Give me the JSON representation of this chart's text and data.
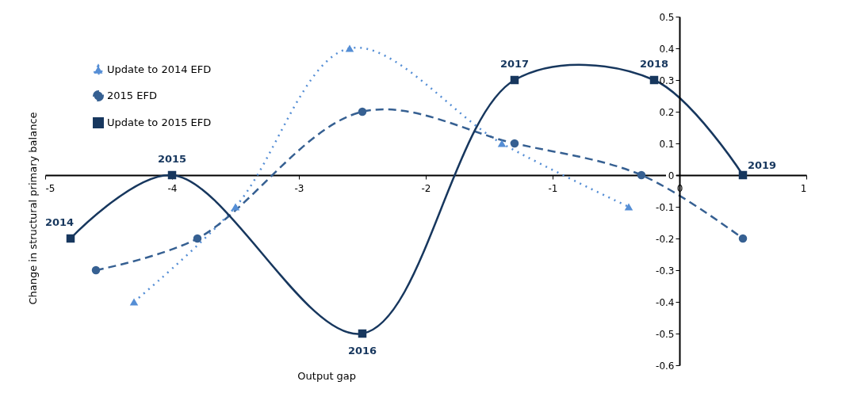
{
  "chart_data": {
    "type": "line",
    "xlabel": "Output gap",
    "ylabel": "Change in structural primary balance",
    "xlim": [
      -5,
      1
    ],
    "xticks": [
      -5,
      -4,
      -3,
      -2,
      -1,
      0,
      1
    ],
    "ylim": [
      -0.6,
      0.5
    ],
    "yticks": [
      -0.6,
      -0.5,
      -0.4,
      -0.3,
      -0.2,
      -0.1,
      0,
      0.1,
      0.2,
      0.3,
      0.4,
      0.5
    ],
    "grid": false,
    "legend": "top left",
    "series": [
      {
        "name": "Update to 2014 EFD",
        "color": "#558ed5",
        "line_style": "dotted",
        "marker": "triangle",
        "x": [
          -4.3,
          -3.5,
          -2.6,
          -1.4,
          -0.4
        ],
        "values": [
          -0.4,
          -0.1,
          0.4,
          0.1,
          -0.1
        ]
      },
      {
        "name": "2015 EFD",
        "color": "#366092",
        "line_style": "dashed",
        "marker": "circle",
        "x": [
          -4.6,
          -3.8,
          -2.5,
          -1.3,
          -0.3,
          0.5
        ],
        "values": [
          -0.3,
          -0.2,
          0.2,
          0.1,
          0,
          -0.2
        ]
      },
      {
        "name": "Update to 2015 EFD",
        "color": "#17375e",
        "line_style": "solid",
        "marker": "square",
        "x": [
          -4.8,
          -4,
          -2.5,
          -1.3,
          -0.2,
          0.5
        ],
        "values": [
          -0.2,
          0,
          -0.5,
          0.3,
          0.3,
          0
        ]
      }
    ],
    "annotations": [
      {
        "text": "2014",
        "x": -4.8,
        "y": -0.2
      },
      {
        "text": "2015",
        "x": -4,
        "y": 0
      },
      {
        "text": "2016",
        "x": -2.5,
        "y": -0.5
      },
      {
        "text": "2017",
        "x": -1.3,
        "y": 0.3
      },
      {
        "text": "2018",
        "x": -0.2,
        "y": 0.3
      },
      {
        "text": "2019",
        "x": 0.5,
        "y": 0
      }
    ]
  }
}
